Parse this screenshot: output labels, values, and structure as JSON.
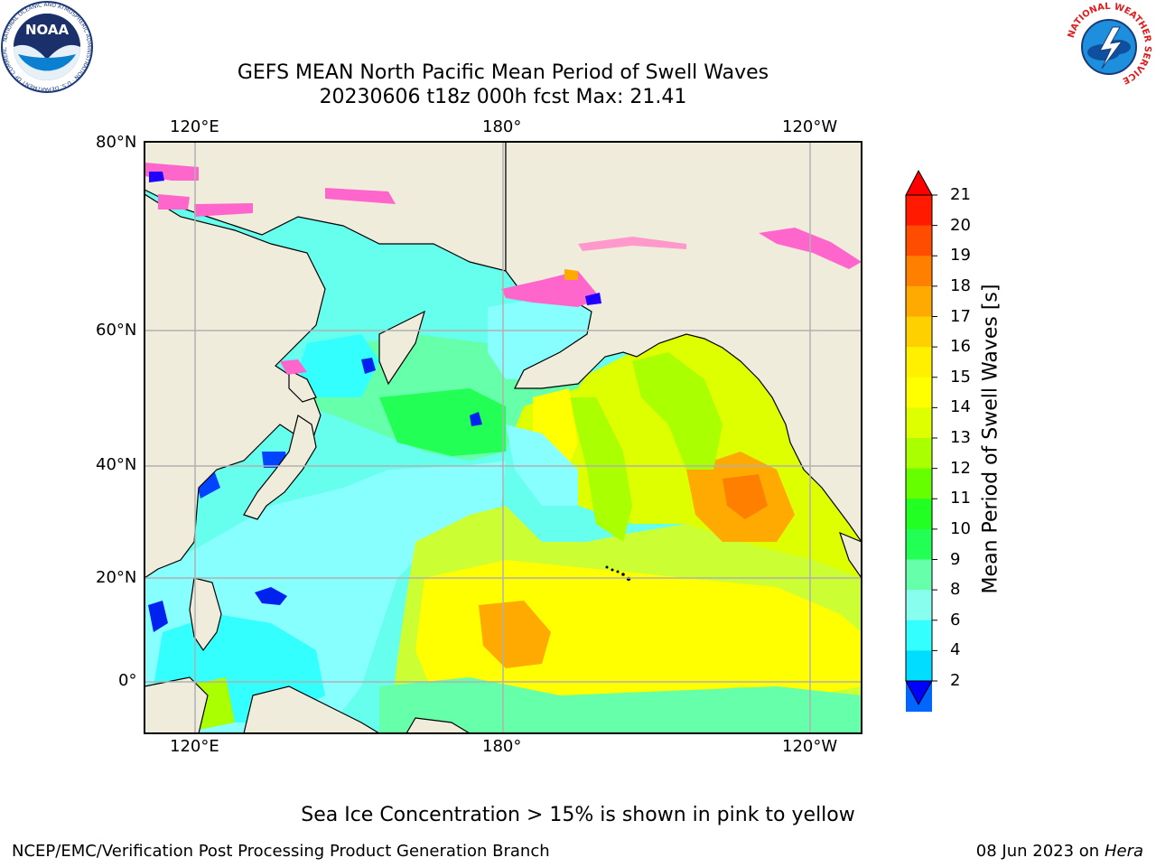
{
  "title": {
    "line1": "GEFS MEAN North Pacific Mean Period of Swell Waves",
    "line2": "20230606 t18z 000h fcst    Max: 21.41"
  },
  "map": {
    "lon_labels_top": [
      "120°E",
      "180°",
      "120°W"
    ],
    "lon_labels_bottom": [
      "120°E",
      "180°",
      "120°W"
    ],
    "lat_labels": [
      "80°N",
      "60°N",
      "40°N",
      "20°N",
      "0°"
    ],
    "land_color": "#efecdc",
    "grid_color": "#b0b0b0"
  },
  "colorbar": {
    "title": "Mean Period of Swell Waves [s]",
    "ticks": [
      "21",
      "20",
      "19",
      "18",
      "17",
      "16",
      "15",
      "14",
      "13",
      "12",
      "11",
      "10",
      "9",
      "8",
      "6",
      "4",
      "2"
    ],
    "colors_top_to_bottom": [
      "#ff1a00",
      "#ff4d00",
      "#ff7f00",
      "#ffaa00",
      "#ffd000",
      "#fff000",
      "#ffff00",
      "#ddff00",
      "#aaff00",
      "#66ff00",
      "#22ff22",
      "#22ff55",
      "#66ffaa",
      "#88ffee",
      "#33ffff",
      "#00ddff",
      "#0066ff"
    ],
    "over_color": "#ff0000",
    "under_color": "#0000ff"
  },
  "note": "Sea Ice Concentration > 15% is shown in pink to yellow",
  "footer": {
    "left": "NCEP/EMC/Verification Post Processing Product Generation Branch",
    "right_date": "08 Jun 2023 on",
    "right_host": "Hera"
  },
  "logos": {
    "left_text": "NOAA",
    "left_ring": "NATIONAL OCEANIC AND ATMOSPHERIC ADMINISTRATION · U.S. DEPARTMENT OF COMMERCE",
    "right_ring": "NATIONAL WEATHER SERVICE"
  }
}
